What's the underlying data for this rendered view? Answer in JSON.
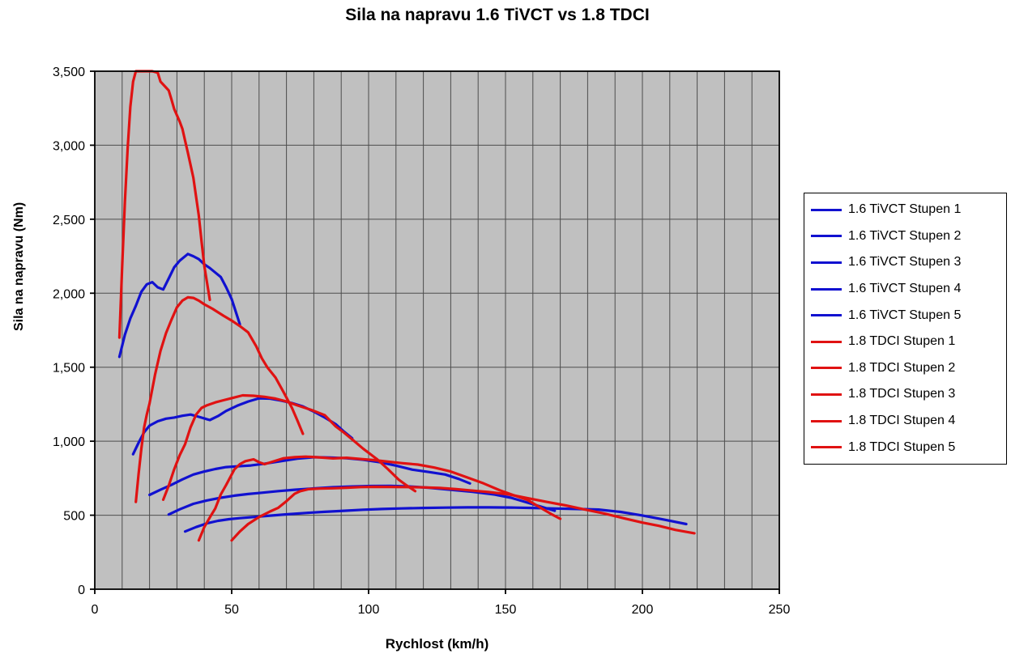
{
  "title": "Sila na napravu 1.6 TiVCT vs 1.8 TDCI",
  "chart_data": {
    "type": "line",
    "title": "Sila na napravu 1.6 TiVCT vs 1.8 TDCI",
    "xlabel": "Rychlost (km/h)",
    "ylabel": "Sila na napravu (Nm)",
    "xlim": [
      0,
      250
    ],
    "ylim": [
      0,
      3500
    ],
    "x_ticks": [
      0,
      50,
      100,
      150,
      200,
      250
    ],
    "x_tick_labels": [
      "0",
      "50",
      "100",
      "150",
      "200",
      "250"
    ],
    "y_ticks": [
      0,
      500,
      1000,
      1500,
      2000,
      2500,
      3000,
      3500
    ],
    "y_tick_labels": [
      "0",
      "500",
      "1,000",
      "1,500",
      "2,000",
      "2,500",
      "3,000",
      "3,500"
    ],
    "x_minor_grid_step": 10,
    "grid": true,
    "legend_position": "right",
    "plot_bg": "#c0c0c0",
    "grid_color": "#4d4d4d",
    "border_color": "#000000",
    "colors": {
      "petrol": "#1111d0",
      "diesel": "#e01212"
    },
    "series": [
      {
        "name": "1.6 TiVCT Stupen 1",
        "color": "#1111d0",
        "points": [
          [
            9,
            1570
          ],
          [
            11,
            1720
          ],
          [
            13,
            1830
          ],
          [
            15,
            1915
          ],
          [
            17,
            2010
          ],
          [
            19,
            2060
          ],
          [
            21,
            2075
          ],
          [
            23,
            2040
          ],
          [
            25,
            2025
          ],
          [
            27,
            2100
          ],
          [
            29,
            2175
          ],
          [
            31,
            2220
          ],
          [
            34,
            2265
          ],
          [
            36,
            2250
          ],
          [
            38,
            2230
          ],
          [
            40,
            2195
          ],
          [
            42,
            2170
          ],
          [
            44,
            2140
          ],
          [
            46,
            2110
          ],
          [
            48,
            2040
          ],
          [
            50,
            1960
          ],
          [
            53,
            1790
          ]
        ]
      },
      {
        "name": "1.6 TiVCT Stupen 2",
        "color": "#1111d0",
        "points": [
          [
            14,
            912
          ],
          [
            16,
            990
          ],
          [
            18,
            1060
          ],
          [
            20,
            1105
          ],
          [
            23,
            1135
          ],
          [
            26,
            1152
          ],
          [
            29,
            1160
          ],
          [
            32,
            1172
          ],
          [
            35,
            1180
          ],
          [
            38,
            1165
          ],
          [
            42,
            1143
          ],
          [
            45,
            1170
          ],
          [
            48,
            1205
          ],
          [
            52,
            1240
          ],
          [
            56,
            1268
          ],
          [
            60,
            1290
          ],
          [
            64,
            1288
          ],
          [
            68,
            1275
          ],
          [
            72,
            1258
          ],
          [
            76,
            1235
          ],
          [
            80,
            1200
          ],
          [
            84,
            1160
          ],
          [
            88,
            1115
          ],
          [
            91,
            1065
          ],
          [
            94,
            1020
          ]
        ]
      },
      {
        "name": "1.6 TiVCT Stupen 3",
        "color": "#1111d0",
        "points": [
          [
            20,
            637
          ],
          [
            24,
            672
          ],
          [
            28,
            705
          ],
          [
            32,
            742
          ],
          [
            36,
            775
          ],
          [
            40,
            795
          ],
          [
            44,
            812
          ],
          [
            48,
            825
          ],
          [
            52,
            830
          ],
          [
            57,
            836
          ],
          [
            62,
            848
          ],
          [
            68,
            865
          ],
          [
            74,
            882
          ],
          [
            80,
            892
          ],
          [
            86,
            890
          ],
          [
            92,
            885
          ],
          [
            98,
            875
          ],
          [
            104,
            858
          ],
          [
            110,
            835
          ],
          [
            116,
            808
          ],
          [
            122,
            792
          ],
          [
            128,
            775
          ],
          [
            133,
            745
          ],
          [
            137,
            715
          ]
        ]
      },
      {
        "name": "1.6 TiVCT Stupen 4",
        "color": "#1111d0",
        "points": [
          [
            27,
            505
          ],
          [
            31,
            540
          ],
          [
            36,
            577
          ],
          [
            41,
            600
          ],
          [
            46,
            618
          ],
          [
            51,
            632
          ],
          [
            56,
            643
          ],
          [
            61,
            652
          ],
          [
            67,
            663
          ],
          [
            73,
            672
          ],
          [
            80,
            681
          ],
          [
            87,
            689
          ],
          [
            94,
            694
          ],
          [
            101,
            697
          ],
          [
            108,
            698
          ],
          [
            115,
            694
          ],
          [
            122,
            686
          ],
          [
            130,
            672
          ],
          [
            138,
            658
          ],
          [
            146,
            640
          ],
          [
            152,
            618
          ],
          [
            158,
            585
          ],
          [
            163,
            558
          ],
          [
            168,
            530
          ]
        ]
      },
      {
        "name": "1.6 TiVCT Stupen 5",
        "color": "#1111d0",
        "points": [
          [
            33,
            390
          ],
          [
            37,
            420
          ],
          [
            41,
            445
          ],
          [
            45,
            462
          ],
          [
            49,
            473
          ],
          [
            53,
            480
          ],
          [
            58,
            488
          ],
          [
            64,
            497
          ],
          [
            70,
            506
          ],
          [
            77,
            515
          ],
          [
            84,
            523
          ],
          [
            91,
            530
          ],
          [
            98,
            537
          ],
          [
            105,
            542
          ],
          [
            112,
            546
          ],
          [
            120,
            549
          ],
          [
            128,
            551
          ],
          [
            136,
            553
          ],
          [
            144,
            553
          ],
          [
            152,
            552
          ],
          [
            160,
            549
          ],
          [
            168,
            545
          ],
          [
            176,
            542
          ],
          [
            184,
            538
          ],
          [
            192,
            522
          ],
          [
            200,
            498
          ],
          [
            208,
            470
          ],
          [
            216,
            440
          ]
        ]
      },
      {
        "name": "1.8 TDCI Stupen 1",
        "color": "#e01212",
        "points": [
          [
            9,
            1700
          ],
          [
            10,
            2180
          ],
          [
            11,
            2620
          ],
          [
            12,
            2980
          ],
          [
            13,
            3260
          ],
          [
            14,
            3430
          ],
          [
            15,
            3500
          ],
          [
            17,
            3500
          ],
          [
            19,
            3500
          ],
          [
            21,
            3500
          ],
          [
            23,
            3490
          ],
          [
            24,
            3430
          ],
          [
            26,
            3390
          ],
          [
            27,
            3370
          ],
          [
            28,
            3310
          ],
          [
            29,
            3245
          ],
          [
            31,
            3160
          ],
          [
            32,
            3110
          ],
          [
            33,
            3030
          ],
          [
            34,
            2950
          ],
          [
            35,
            2865
          ],
          [
            36,
            2780
          ],
          [
            37,
            2650
          ],
          [
            38,
            2525
          ],
          [
            39,
            2350
          ],
          [
            40,
            2185
          ],
          [
            42,
            1955
          ]
        ]
      },
      {
        "name": "1.8 TDCI Stupen 2",
        "color": "#e01212",
        "points": [
          [
            15,
            590
          ],
          [
            16,
            780
          ],
          [
            17,
            950
          ],
          [
            18,
            1090
          ],
          [
            19,
            1180
          ],
          [
            20,
            1255
          ],
          [
            22,
            1450
          ],
          [
            24,
            1610
          ],
          [
            26,
            1730
          ],
          [
            28,
            1820
          ],
          [
            30,
            1905
          ],
          [
            32,
            1950
          ],
          [
            34,
            1972
          ],
          [
            36,
            1968
          ],
          [
            38,
            1950
          ],
          [
            40,
            1925
          ],
          [
            43,
            1895
          ],
          [
            47,
            1848
          ],
          [
            50,
            1815
          ],
          [
            53,
            1778
          ],
          [
            56,
            1735
          ],
          [
            59,
            1640
          ],
          [
            61,
            1560
          ],
          [
            63,
            1500
          ],
          [
            66,
            1430
          ],
          [
            69,
            1330
          ],
          [
            72,
            1225
          ],
          [
            74,
            1140
          ],
          [
            76,
            1050
          ]
        ]
      },
      {
        "name": "1.8 TDCI Stupen 3",
        "color": "#e01212",
        "points": [
          [
            25,
            605
          ],
          [
            27,
            700
          ],
          [
            29,
            810
          ],
          [
            31,
            905
          ],
          [
            33,
            980
          ],
          [
            35,
            1095
          ],
          [
            37,
            1180
          ],
          [
            39,
            1225
          ],
          [
            41,
            1243
          ],
          [
            44,
            1262
          ],
          [
            47,
            1277
          ],
          [
            50,
            1291
          ],
          [
            54,
            1310
          ],
          [
            58,
            1307
          ],
          [
            62,
            1300
          ],
          [
            66,
            1288
          ],
          [
            70,
            1268
          ],
          [
            74,
            1242
          ],
          [
            79,
            1212
          ],
          [
            84,
            1176
          ],
          [
            88,
            1100
          ],
          [
            91,
            1058
          ],
          [
            94,
            1012
          ],
          [
            98,
            950
          ],
          [
            103,
            880
          ],
          [
            107,
            812
          ],
          [
            111,
            740
          ],
          [
            114,
            700
          ],
          [
            117,
            663
          ]
        ]
      },
      {
        "name": "1.8 TDCI Stupen 4",
        "color": "#e01212",
        "points": [
          [
            38,
            330
          ],
          [
            40,
            420
          ],
          [
            42,
            485
          ],
          [
            44,
            545
          ],
          [
            46,
            640
          ],
          [
            48,
            705
          ],
          [
            51,
            810
          ],
          [
            53,
            845
          ],
          [
            55,
            865
          ],
          [
            58,
            878
          ],
          [
            60,
            858
          ],
          [
            62,
            845
          ],
          [
            65,
            862
          ],
          [
            69,
            885
          ],
          [
            73,
            892
          ],
          [
            77,
            896
          ],
          [
            82,
            891
          ],
          [
            87,
            884
          ],
          [
            92,
            888
          ],
          [
            97,
            880
          ],
          [
            102,
            872
          ],
          [
            107,
            862
          ],
          [
            112,
            852
          ],
          [
            118,
            842
          ],
          [
            124,
            822
          ],
          [
            130,
            795
          ],
          [
            136,
            755
          ],
          [
            142,
            715
          ],
          [
            148,
            668
          ],
          [
            153,
            635
          ],
          [
            158,
            604
          ],
          [
            163,
            548
          ],
          [
            167,
            505
          ],
          [
            170,
            476
          ]
        ]
      },
      {
        "name": "1.8 TDCI Stupen 5",
        "color": "#e01212",
        "points": [
          [
            50,
            330
          ],
          [
            53,
            390
          ],
          [
            56,
            440
          ],
          [
            60,
            488
          ],
          [
            64,
            525
          ],
          [
            67,
            550
          ],
          [
            70,
            595
          ],
          [
            73,
            645
          ],
          [
            75,
            662
          ],
          [
            78,
            676
          ],
          [
            82,
            680
          ],
          [
            87,
            682
          ],
          [
            92,
            686
          ],
          [
            97,
            690
          ],
          [
            102,
            692
          ],
          [
            108,
            691
          ],
          [
            114,
            690
          ],
          [
            120,
            688
          ],
          [
            126,
            684
          ],
          [
            132,
            676
          ],
          [
            138,
            666
          ],
          [
            144,
            656
          ],
          [
            151,
            641
          ],
          [
            158,
            616
          ],
          [
            165,
            590
          ],
          [
            172,
            566
          ],
          [
            179,
            538
          ],
          [
            186,
            512
          ],
          [
            193,
            480
          ],
          [
            200,
            450
          ],
          [
            206,
            428
          ],
          [
            212,
            401
          ],
          [
            219,
            378
          ]
        ]
      }
    ]
  }
}
